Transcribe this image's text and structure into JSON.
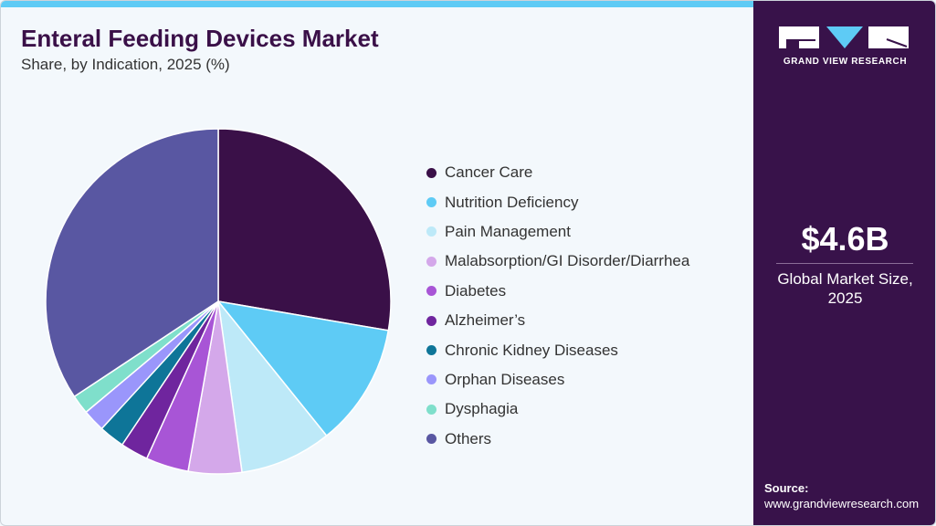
{
  "header": {
    "title": "Enteral Feeding Devices Market",
    "subtitle": "Share, by Indication, 2025 (%)"
  },
  "sidebar": {
    "logo_text": "GRAND VIEW RESEARCH",
    "market_size": "$4.6B",
    "market_caption_1": "Global Market Size,",
    "market_caption_2": "2025",
    "source_label": "Source:",
    "source_url": "www.grandviewresearch.com"
  },
  "colors": {
    "panel": "#38124a",
    "accent": "#5ecbf5"
  },
  "chart_data": {
    "type": "pie",
    "title": "Enteral Feeding Devices Market",
    "subtitle": "Share, by Indication, 2025 (%)",
    "legend_position": "right",
    "categories": [
      "Cancer Care",
      "Nutrition Deficiency",
      "Pain Management",
      "Malabsorption/GI Disorder/Diarrhea",
      "Diabetes",
      "Alzheimer’s",
      "Chronic Kidney Diseases",
      "Orphan Diseases",
      "Dysphagia",
      "Others"
    ],
    "values": [
      27.7,
      11.5,
      8.6,
      5.0,
      4.0,
      2.6,
      2.4,
      2.1,
      1.8,
      34.3
    ],
    "colors": [
      "#3a1048",
      "#5ecbf5",
      "#bde9f8",
      "#d4a8ea",
      "#a855d6",
      "#6f259e",
      "#0e7598",
      "#9a96fb",
      "#7fdfcb",
      "#5957a2"
    ]
  }
}
